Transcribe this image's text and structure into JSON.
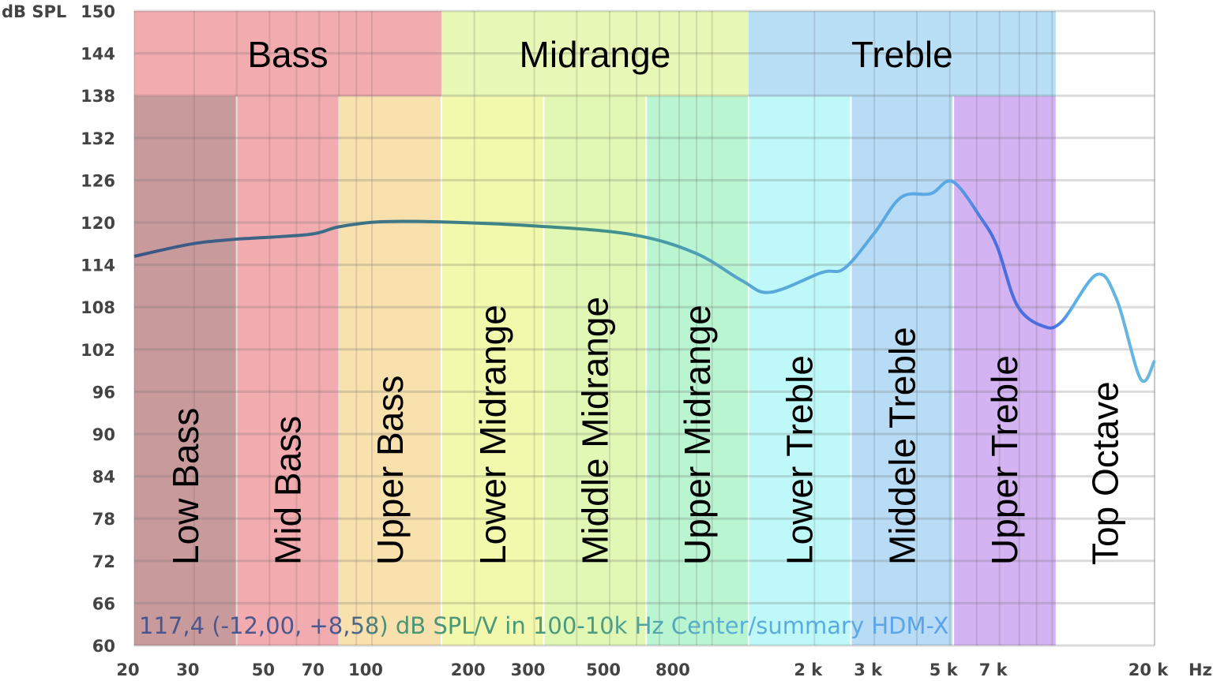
{
  "chart_data": {
    "type": "line",
    "xlabel": "Hz",
    "ylabel": "dB SPL",
    "x_scale": "log",
    "xlim": [
      20,
      20000
    ],
    "ylim": [
      60,
      150
    ],
    "grid": true,
    "x_ticks": [
      {
        "value": 20,
        "label": "20"
      },
      {
        "value": 30,
        "label": "30"
      },
      {
        "value": 50,
        "label": "50"
      },
      {
        "value": 70,
        "label": "70"
      },
      {
        "value": 100,
        "label": "100"
      },
      {
        "value": 200,
        "label": "200"
      },
      {
        "value": 300,
        "label": "300"
      },
      {
        "value": 500,
        "label": "500"
      },
      {
        "value": 800,
        "label": "800"
      },
      {
        "value": 2000,
        "label": "2 k"
      },
      {
        "value": 3000,
        "label": "3 k"
      },
      {
        "value": 5000,
        "label": "5 k"
      },
      {
        "value": 7000,
        "label": "7 k"
      },
      {
        "value": 20000,
        "label": "20 k"
      }
    ],
    "y_ticks": [
      60,
      66,
      72,
      78,
      84,
      90,
      96,
      102,
      108,
      114,
      120,
      126,
      132,
      138,
      144,
      150
    ],
    "groups": [
      {
        "label": "Bass",
        "from": 20,
        "to": 160,
        "color": "#f2abae"
      },
      {
        "label": "Midrange",
        "from": 160,
        "to": 1280,
        "color": "#e8f8b6"
      },
      {
        "label": "Treble",
        "from": 1280,
        "to": 10240,
        "color": "#b9dff6"
      }
    ],
    "bands": [
      {
        "label": "Low Bass",
        "from": 20,
        "to": 40,
        "color": "#c99a9c"
      },
      {
        "label": "Mid Bass",
        "from": 40,
        "to": 80,
        "color": "#f2abae"
      },
      {
        "label": "Upper Bass",
        "from": 80,
        "to": 160,
        "color": "#f9e1ae"
      },
      {
        "label": "Lower Midrange",
        "from": 160,
        "to": 320,
        "color": "#f2f9ad"
      },
      {
        "label": "Middle Midrange",
        "from": 320,
        "to": 640,
        "color": "#e1f8b5"
      },
      {
        "label": "Upper Midrange",
        "from": 640,
        "to": 1280,
        "color": "#baf5d2"
      },
      {
        "label": "Lower Treble",
        "from": 1280,
        "to": 2560,
        "color": "#bef8f8"
      },
      {
        "label": "Middele Treble",
        "from": 2560,
        "to": 5120,
        "color": "#b8dcf5"
      },
      {
        "label": "Upper Treble",
        "from": 5120,
        "to": 10240,
        "color": "#d4b3f3"
      },
      {
        "label": "Top Octave",
        "from": 10240,
        "to": 20000,
        "color": "#ffffff"
      }
    ],
    "series": [
      {
        "x": [
          20,
          29,
          39,
          65,
          80,
          105,
          157,
          305,
          580,
          890,
          1220,
          1480,
          2100,
          2450,
          3000,
          3600,
          4400,
          5100,
          6200,
          6900,
          7900,
          9400,
          10700,
          13500,
          15500,
          18200,
          20000
        ],
        "y": [
          115.2,
          116.9,
          117.6,
          118.3,
          119.4,
          120.1,
          120.1,
          119.5,
          118.3,
          115.7,
          111.8,
          110.1,
          112.9,
          113.5,
          118.5,
          123.6,
          124.1,
          125.8,
          120.5,
          116.5,
          108.2,
          105.3,
          106.0,
          112.6,
          109.0,
          97.8,
          100.4
        ]
      }
    ],
    "annotation": "117,4 (-12,00, +8,58) dB SPL/V in 100-10k Hz Center/summary HDM-X",
    "colors": {
      "curve_start": "#3b5585",
      "curve_mid": "#3f8f86",
      "curve_end": "#5ab0e6",
      "curve_peak": "#4a6ee0"
    }
  }
}
